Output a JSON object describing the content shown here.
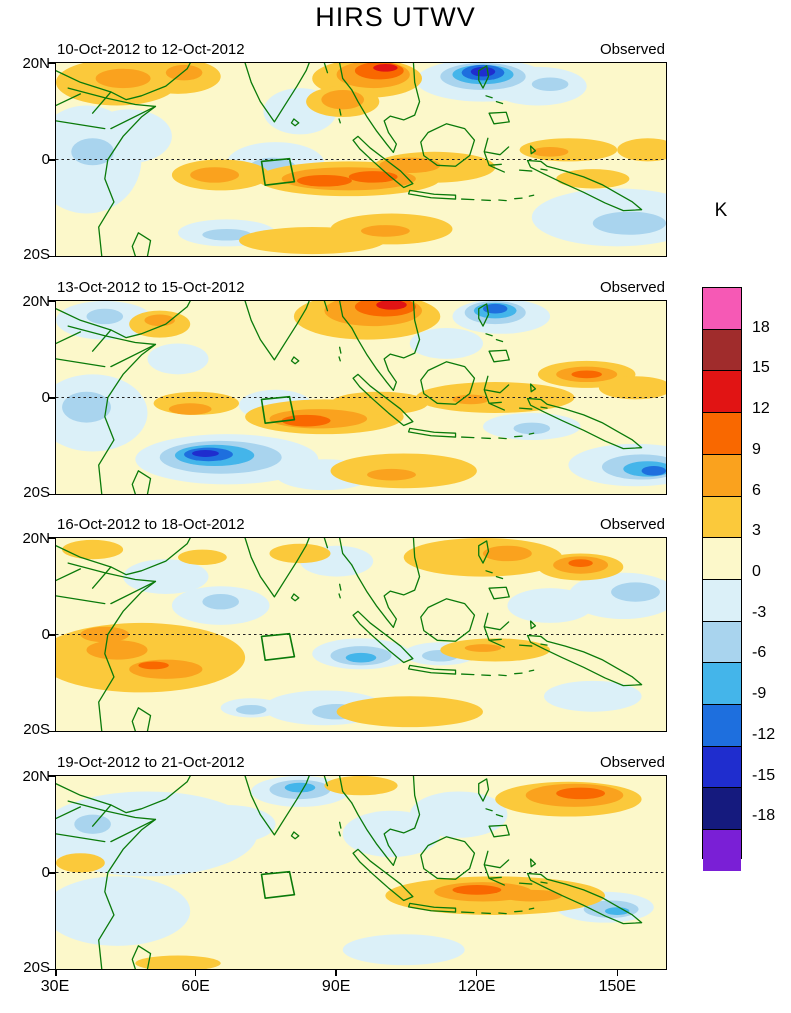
{
  "title": "HIRS UTWV",
  "colorbar": {
    "label": "K",
    "tick_values": [
      18,
      15,
      12,
      9,
      6,
      3,
      0,
      -3,
      -6,
      -9,
      -12,
      -15,
      -18
    ],
    "colors_top_to_bottom": [
      "#F659B5",
      "#A02C2C",
      "#E11414",
      "#F96800",
      "#FAA21E",
      "#FBC93B",
      "#FCF8CA",
      "#DBF0F8",
      "#A9D4EE",
      "#44B5EA",
      "#1E6FDE",
      "#1F2DCE",
      "#151A7E",
      "#7A1FD6"
    ]
  },
  "axes": {
    "x_tick_labels": [
      "30E",
      "60E",
      "90E",
      "120E",
      "150E"
    ],
    "x_tick_lons": [
      30,
      60,
      90,
      120,
      150
    ],
    "lon_min": 30,
    "lon_max": 160.6,
    "y_tick_labels": [
      "20N",
      "0",
      "20S"
    ],
    "lat_min": -20,
    "lat_max": 20
  },
  "map_style": {
    "coastline_color": "#0A7A0A",
    "equator_line_color": "#222222",
    "background_band": "#FCF8CA"
  },
  "chart_data": {
    "type": "heatmap",
    "variable": "HIRS upper-tropospheric water vapor anomaly",
    "units": "K",
    "contour_interval": 3,
    "value_range": [
      -18,
      18
    ],
    "region": {
      "lon": [
        30,
        160.6
      ],
      "lat": [
        -20,
        20
      ]
    },
    "target_box": {
      "lon": [
        74,
        80
      ],
      "lat": [
        -5,
        0
      ]
    },
    "feature_format": "[band_lower_bound_K, cx_pct, cy_pct, rx_pct, ry_pct]; cx is % from 30E to 160.6E, cy is % from 20N (0) to 20S (100); band 3 = +3..+6K, band -6 = -6..-3K, etc.",
    "panels": [
      {
        "date_range": "10-Oct-2012 to 12-Oct-2012",
        "source": "Observed",
        "features": [
          [
            -3,
            5,
            50,
            9,
            28
          ],
          [
            -3,
            12,
            38,
            7,
            14
          ],
          [
            -3,
            36,
            52,
            8,
            11
          ],
          [
            -3,
            40,
            25,
            6,
            12
          ],
          [
            -3,
            70,
            9,
            11,
            11
          ],
          [
            -3,
            79,
            12,
            8,
            10
          ],
          [
            -3,
            92,
            80,
            14,
            15
          ],
          [
            -3,
            28,
            88,
            8,
            7
          ],
          [
            -6,
            6,
            46,
            3.5,
            7
          ],
          [
            -6,
            35.5,
            55,
            4,
            6
          ],
          [
            -6,
            70,
            7,
            7,
            7
          ],
          [
            -6,
            81,
            11,
            3,
            3.5
          ],
          [
            -6,
            94,
            83,
            6,
            6
          ],
          [
            -6,
            28,
            89,
            4,
            3
          ],
          [
            -9,
            70,
            6,
            5,
            5
          ],
          [
            -12,
            70,
            5,
            3.5,
            4
          ],
          [
            -15,
            70,
            4.5,
            2,
            2.5
          ],
          [
            3,
            10,
            10,
            10,
            12
          ],
          [
            3,
            20,
            7,
            7,
            9
          ],
          [
            3,
            27,
            58,
            8,
            8
          ],
          [
            3,
            48,
            60,
            15,
            9
          ],
          [
            3,
            62,
            54,
            10,
            8
          ],
          [
            3,
            51,
            8,
            9,
            10
          ],
          [
            3,
            47,
            20,
            6,
            8
          ],
          [
            3,
            84,
            45,
            8,
            6
          ],
          [
            3,
            55,
            86,
            10,
            8
          ],
          [
            3,
            42,
            92,
            12,
            7
          ],
          [
            3,
            88,
            60,
            6,
            5
          ],
          [
            3,
            97,
            45,
            5,
            6
          ],
          [
            6,
            11,
            8,
            4.5,
            5
          ],
          [
            6,
            21,
            5,
            3,
            4
          ],
          [
            6,
            26,
            58,
            4,
            4
          ],
          [
            6,
            48,
            60,
            11,
            6
          ],
          [
            6,
            58,
            53,
            5,
            4
          ],
          [
            6,
            52,
            6,
            6,
            7
          ],
          [
            6,
            47,
            19,
            3.5,
            5
          ],
          [
            6,
            81,
            46,
            3,
            2.5
          ],
          [
            6,
            54,
            87,
            4,
            3
          ],
          [
            9,
            44,
            61,
            4.5,
            3
          ],
          [
            9,
            52,
            59,
            4,
            3
          ],
          [
            9,
            53,
            4,
            4,
            4.5
          ],
          [
            12,
            54,
            2.5,
            2,
            2
          ]
        ]
      },
      {
        "date_range": "13-Oct-2012 to 15-Oct-2012",
        "source": "Observed",
        "features": [
          [
            -3,
            8,
            10,
            8,
            10
          ],
          [
            -3,
            6,
            58,
            9,
            20
          ],
          [
            -3,
            28,
            82,
            15,
            13
          ],
          [
            -3,
            36,
            54,
            6,
            8
          ],
          [
            -3,
            73,
            8,
            8,
            9
          ],
          [
            -3,
            64,
            22,
            6,
            8
          ],
          [
            -3,
            78,
            65,
            8,
            7
          ],
          [
            -3,
            95,
            85,
            11,
            11
          ],
          [
            -3,
            44,
            90,
            8,
            8
          ],
          [
            -3,
            20,
            30,
            5,
            8
          ],
          [
            -6,
            8,
            8,
            3,
            4
          ],
          [
            -6,
            5,
            55,
            4,
            8
          ],
          [
            -6,
            27,
            81,
            10,
            8.5
          ],
          [
            -6,
            72,
            6,
            5,
            6
          ],
          [
            -6,
            78,
            66,
            3,
            3
          ],
          [
            -6,
            96,
            86,
            6.5,
            6.5
          ],
          [
            -9,
            26,
            80,
            6.5,
            5.5
          ],
          [
            -9,
            72,
            5,
            3.5,
            4
          ],
          [
            -9,
            97,
            87,
            4,
            4
          ],
          [
            -12,
            25,
            79.5,
            4,
            3.5
          ],
          [
            -12,
            72,
            4,
            2,
            2.5
          ],
          [
            -12,
            98,
            88,
            2,
            2.5
          ],
          [
            -15,
            24.5,
            79,
            2.2,
            1.8
          ],
          [
            3,
            17,
            12,
            5,
            7
          ],
          [
            3,
            23,
            53,
            7,
            6
          ],
          [
            3,
            44,
            60,
            13,
            9
          ],
          [
            3,
            53,
            53,
            8,
            6
          ],
          [
            3,
            51,
            8,
            12,
            12
          ],
          [
            3,
            72,
            50,
            13,
            8
          ],
          [
            3,
            87,
            38,
            8,
            7
          ],
          [
            3,
            57,
            88,
            12,
            9
          ],
          [
            3,
            95,
            45,
            6,
            6
          ],
          [
            6,
            17,
            10,
            2.5,
            3
          ],
          [
            6,
            22,
            56,
            3.5,
            3
          ],
          [
            6,
            43,
            61,
            8,
            5
          ],
          [
            6,
            52,
            5,
            8,
            8
          ],
          [
            6,
            68,
            51,
            3,
            2.5
          ],
          [
            6,
            87,
            38,
            5,
            4
          ],
          [
            6,
            55,
            90,
            4,
            3
          ],
          [
            9,
            41,
            62,
            4,
            3
          ],
          [
            9,
            54,
            3,
            5,
            5
          ],
          [
            9,
            87,
            38,
            2.5,
            2
          ],
          [
            12,
            55,
            2,
            2.5,
            2.5
          ]
        ]
      },
      {
        "date_range": "16-Oct-2012 to 18-Oct-2012",
        "source": "Observed",
        "features": [
          [
            -3,
            18,
            20,
            7,
            9
          ],
          [
            -3,
            27,
            35,
            8,
            10
          ],
          [
            -3,
            46,
            12,
            6,
            8
          ],
          [
            -3,
            50,
            60,
            8,
            8
          ],
          [
            -3,
            63,
            60,
            6,
            6
          ],
          [
            -3,
            81,
            35,
            7,
            9
          ],
          [
            -3,
            93,
            30,
            9,
            12
          ],
          [
            -3,
            44,
            88,
            10,
            9
          ],
          [
            -3,
            88,
            82,
            8,
            8
          ],
          [
            -3,
            32,
            88,
            5,
            5
          ],
          [
            -6,
            27,
            33,
            3,
            4
          ],
          [
            -6,
            50,
            61,
            5,
            5
          ],
          [
            -6,
            63,
            61,
            3,
            3
          ],
          [
            -6,
            95,
            28,
            4,
            5
          ],
          [
            -6,
            46,
            90,
            4,
            4
          ],
          [
            -6,
            32,
            89,
            2.5,
            2.5
          ],
          [
            -9,
            50,
            62,
            2.5,
            2.5
          ],
          [
            3,
            14,
            62,
            17,
            18
          ],
          [
            3,
            6,
            6,
            5,
            5
          ],
          [
            3,
            40,
            8,
            5,
            5
          ],
          [
            3,
            70,
            10,
            13,
            10
          ],
          [
            3,
            86,
            15,
            7,
            7
          ],
          [
            3,
            72,
            58,
            9,
            6
          ],
          [
            3,
            58,
            90,
            12,
            8
          ],
          [
            3,
            24,
            10,
            4,
            4
          ],
          [
            6,
            10,
            58,
            5,
            5
          ],
          [
            6,
            18,
            68,
            6,
            5
          ],
          [
            6,
            8,
            50,
            4,
            4
          ],
          [
            6,
            74,
            8,
            4,
            4
          ],
          [
            6,
            86,
            14,
            4.5,
            4.5
          ],
          [
            6,
            70,
            57,
            3,
            2
          ],
          [
            9,
            86,
            13,
            2,
            2
          ],
          [
            9,
            16,
            66,
            2.5,
            2
          ]
        ]
      },
      {
        "date_range": "19-Oct-2012 to 21-Oct-2012",
        "source": "Observed",
        "features": [
          [
            -3,
            15,
            30,
            18,
            22
          ],
          [
            -3,
            10,
            70,
            12,
            18
          ],
          [
            -3,
            40,
            8,
            8,
            8
          ],
          [
            -3,
            55,
            30,
            8,
            12
          ],
          [
            -3,
            66,
            20,
            8,
            12
          ],
          [
            -3,
            90,
            68,
            8,
            8
          ],
          [
            -3,
            57,
            90,
            10,
            8
          ],
          [
            -3,
            28,
            25,
            8,
            10
          ],
          [
            -6,
            40,
            7,
            5,
            5
          ],
          [
            -6,
            91,
            69,
            4.5,
            4.5
          ],
          [
            -6,
            6,
            25,
            3,
            5
          ],
          [
            -9,
            40,
            6,
            2.5,
            2.5
          ],
          [
            -9,
            92,
            70,
            2,
            2
          ],
          [
            3,
            50,
            5,
            6,
            5
          ],
          [
            3,
            84,
            12,
            12,
            9
          ],
          [
            3,
            72,
            62,
            18,
            10
          ],
          [
            3,
            20,
            97,
            7,
            4
          ],
          [
            3,
            4,
            45,
            4,
            5
          ],
          [
            6,
            85,
            10,
            8,
            6
          ],
          [
            6,
            70,
            60,
            8,
            5
          ],
          [
            6,
            78,
            62,
            5,
            3
          ],
          [
            9,
            86,
            9,
            4,
            3
          ],
          [
            9,
            69,
            59,
            4,
            2.5
          ]
        ]
      }
    ]
  }
}
